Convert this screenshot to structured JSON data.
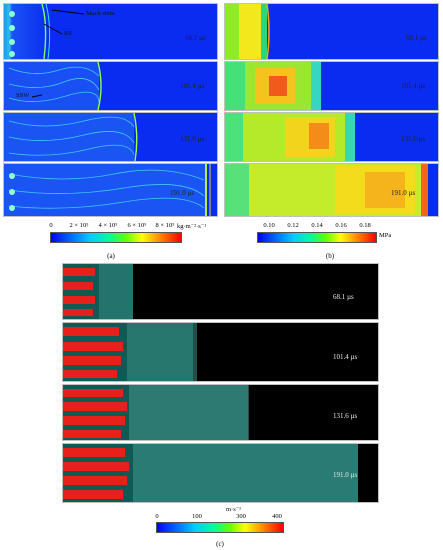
{
  "panel_a": {
    "times": [
      "68.1 µs",
      "101.4 µs",
      "131.6 µs",
      "191.0 µs"
    ],
    "annotations": [
      "Mach stem",
      "RS",
      "SSW"
    ],
    "colorbar": {
      "ticks": [
        "0",
        "2 × 10⁵",
        "4 × 10⁵",
        "6 × 10⁵",
        "8 × 10⁵"
      ],
      "unit": "kg·m⁻²·s⁻¹"
    },
    "caption": "(a)"
  },
  "panel_b": {
    "times": [
      "68.1 µs",
      "101.4 µs",
      "131.6 µs",
      "191.0 µs"
    ],
    "colorbar": {
      "ticks": [
        "0.10",
        "0.12",
        "0.14",
        "0.16",
        "0.18"
      ],
      "unit": "MPa"
    },
    "caption": "(b)"
  },
  "panel_c": {
    "times": [
      "68.1 µs",
      "101.4 µs",
      "131.6 µs",
      "191.0 µs"
    ],
    "colorbar": {
      "ticks": [
        "0",
        "100",
        "300",
        "400"
      ],
      "unit": "m·s⁻¹"
    },
    "caption": "(c)"
  },
  "colors": {
    "field_blue": "#0a2cf0",
    "particle_black": "#000000",
    "particle_red": "#e8201a",
    "particle_teal": "#4aa39a"
  }
}
